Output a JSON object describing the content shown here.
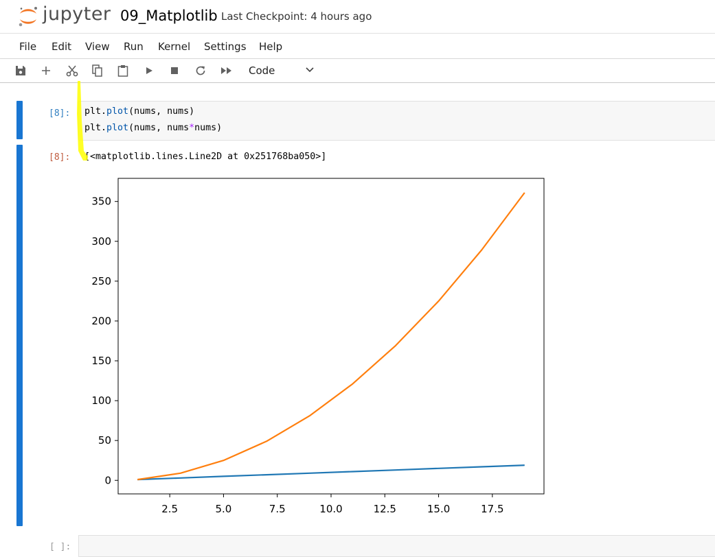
{
  "app": {
    "brand": "jupyter",
    "notebook_title": "09_Matplotlib",
    "checkpoint": "Last Checkpoint: 4 hours ago"
  },
  "menu": [
    "File",
    "Edit",
    "View",
    "Run",
    "Kernel",
    "Settings",
    "Help"
  ],
  "toolbar": {
    "icons": [
      "save-icon",
      "add-icon",
      "cut-icon",
      "copy-icon",
      "paste-icon",
      "run-icon",
      "stop-icon",
      "restart-icon",
      "fast-forward-icon"
    ],
    "cell_type": "Code"
  },
  "cells": [
    {
      "prompt_in": "[8]:",
      "code_line1_a": "plt.",
      "code_line1_b": "plot",
      "code_line1_c": "(nums, nums)",
      "code_line2_a": "plt.",
      "code_line2_b": "plot",
      "code_line2_c": "(nums, nums",
      "code_line2_op": "*",
      "code_line2_d": "nums)",
      "prompt_out": "[8]:",
      "output_text": "[<matplotlib.lines.Line2D at 0x251768ba050>]"
    },
    {
      "prompt_in": "[ ]:"
    }
  ],
  "colors": {
    "accent": "#1976d2",
    "series1": "#1f77b4",
    "series2": "#ff7f0e",
    "highlight": "#ffff00"
  },
  "chart_data": {
    "type": "line",
    "title": "",
    "xlabel": "",
    "ylabel": "",
    "x": [
      1,
      3,
      5,
      7,
      9,
      11,
      13,
      15,
      17,
      19
    ],
    "series": [
      {
        "values": [
          1,
          3,
          5,
          7,
          9,
          11,
          13,
          15,
          17,
          19
        ]
      },
      {
        "values": [
          1,
          9,
          25,
          49,
          81,
          121,
          169,
          225,
          289,
          361
        ]
      }
    ],
    "xlim": [
      0.1,
      19.9
    ],
    "ylim": [
      -17,
      379
    ],
    "xticks": [
      2.5,
      5.0,
      7.5,
      10.0,
      12.5,
      15.0,
      17.5
    ],
    "xtick_labels": [
      "2.5",
      "5.0",
      "7.5",
      "10.0",
      "12.5",
      "15.0",
      "17.5"
    ],
    "yticks": [
      0,
      50,
      100,
      150,
      200,
      250,
      300,
      350
    ],
    "ytick_labels": [
      "0",
      "50",
      "100",
      "150",
      "200",
      "250",
      "300",
      "350"
    ],
    "grid": false,
    "legend": "none"
  }
}
